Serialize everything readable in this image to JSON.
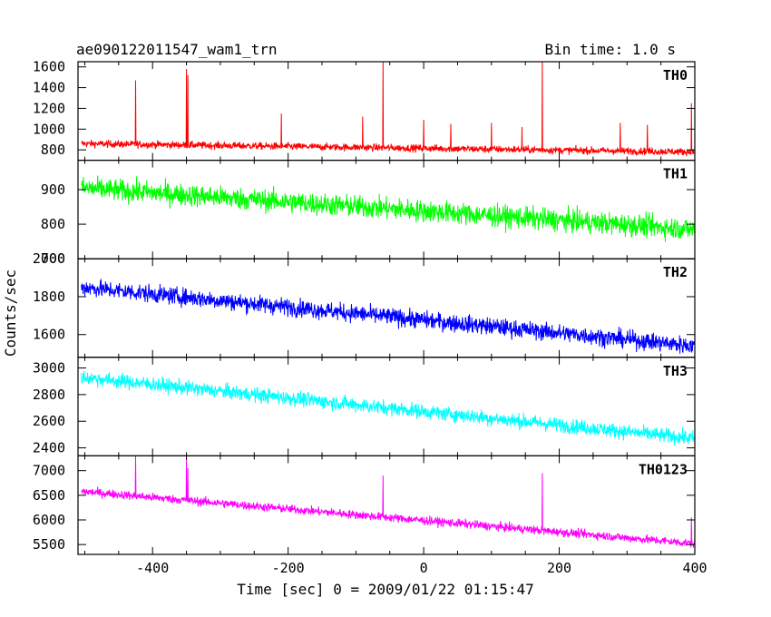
{
  "header": {
    "title": "ae090122011547_wam1_trn",
    "bin_time": "Bin time: 1.0 s"
  },
  "chart_data": {
    "type": "line",
    "xlabel": "Time [sec] 0 = 2009/01/22 01:15:47",
    "ylabel": "Counts/sec",
    "xlim": [
      -510,
      400
    ],
    "x_ticks": [
      -400,
      -200,
      0,
      200,
      400
    ],
    "panels": [
      {
        "name": "TH0",
        "color": "#ff0000",
        "ylim": [
          700,
          1650
        ],
        "y_ticks": [
          800,
          1000,
          1200,
          1400,
          1600
        ],
        "trend": [
          [
            -505,
            860
          ],
          [
            400,
            780
          ]
        ],
        "noise": 60,
        "spikes": [
          [
            -425,
            1470
          ],
          [
            -350,
            1580
          ],
          [
            -348,
            1520
          ],
          [
            -210,
            1150
          ],
          [
            -90,
            1120
          ],
          [
            -60,
            1650
          ],
          [
            0,
            1090
          ],
          [
            40,
            1050
          ],
          [
            100,
            1060
          ],
          [
            145,
            1020
          ],
          [
            175,
            1650
          ],
          [
            290,
            1060
          ],
          [
            330,
            1040
          ],
          [
            395,
            1250
          ]
        ]
      },
      {
        "name": "TH1",
        "color": "#00ff00",
        "ylim": [
          700,
          985
        ],
        "y_ticks": [
          700,
          800,
          900
        ],
        "trend": [
          [
            -505,
            905
          ],
          [
            400,
            785
          ]
        ],
        "noise": 55,
        "spikes": []
      },
      {
        "name": "TH2",
        "color": "#0000ff",
        "ylim": [
          1480,
          2000
        ],
        "y_ticks": [
          1600,
          1800,
          2000
        ],
        "trend": [
          [
            -505,
            1850
          ],
          [
            400,
            1540
          ]
        ],
        "noise": 80,
        "spikes": []
      },
      {
        "name": "TH3",
        "color": "#00ffff",
        "ylim": [
          2340,
          3080
        ],
        "y_ticks": [
          2400,
          2600,
          2800,
          3000
        ],
        "trend": [
          [
            -505,
            2930
          ],
          [
            400,
            2470
          ]
        ],
        "noise": 95,
        "spikes": []
      },
      {
        "name": "TH0123",
        "color": "#ff00ff",
        "ylim": [
          5300,
          7300
        ],
        "y_ticks": [
          5500,
          6000,
          6500,
          7000
        ],
        "trend": [
          [
            -505,
            6580
          ],
          [
            400,
            5520
          ]
        ],
        "noise": 150,
        "spikes": [
          [
            -425,
            7300
          ],
          [
            -350,
            7250
          ],
          [
            -348,
            7050
          ],
          [
            -60,
            6900
          ],
          [
            175,
            6950
          ],
          [
            395,
            6050
          ]
        ]
      }
    ]
  }
}
